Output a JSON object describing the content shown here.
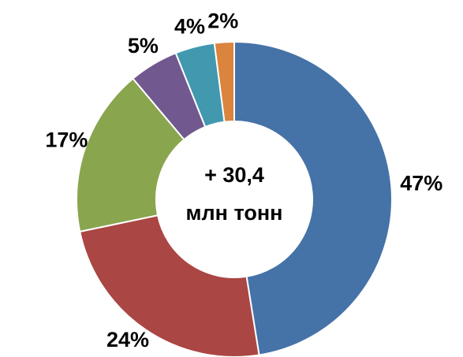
{
  "chart_data": {
    "type": "donut",
    "categories": [
      null,
      null,
      null,
      null,
      null,
      null
    ],
    "values": [
      47,
      24,
      17,
      5,
      4,
      2
    ],
    "value_labels": [
      "47%",
      "24%",
      "17%",
      "5%",
      "4%",
      "2%"
    ],
    "colors": [
      "#4572a7",
      "#aa4643",
      "#89a54e",
      "#71588f",
      "#4198af",
      "#db843d"
    ],
    "annotations": [
      "+ 30,4",
      "млн тонн"
    ]
  }
}
